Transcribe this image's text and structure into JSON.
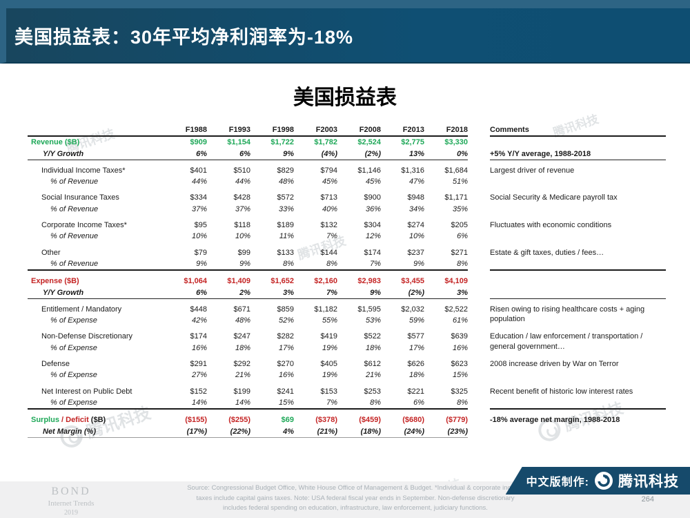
{
  "colors": {
    "green": "#1ea858",
    "red": "#c42424",
    "header_bg": "#0f4f73",
    "header_border": "#2d6484",
    "banner_bg": "#164a6b",
    "footer_bg": "#f0f0f1"
  },
  "header": {
    "title": "美国损益表：30年平均净利润率为-18%"
  },
  "main": {
    "table_title": "美国损益表"
  },
  "watermark": {
    "text": "腾讯科技"
  },
  "chart_data": {
    "type": "table",
    "title": "美国损益表",
    "columns": [
      "F1988",
      "F1993",
      "F1998",
      "F2003",
      "F2008",
      "F2013",
      "F2018"
    ],
    "comments_header": "Comments",
    "rows": [
      {
        "cls": "section green",
        "name": "row-revenue",
        "label": "Revenue ($B)",
        "values": [
          "$909",
          "$1,154",
          "$1,722",
          "$1,782",
          "$2,524",
          "$2,775",
          "$3,330"
        ],
        "b": "none",
        "cmt": {
          "text": "",
          "b": "none"
        }
      },
      {
        "cls": "growth",
        "name": "row-revenue-growth",
        "label": "Y/Y Growth",
        "values": [
          "6%",
          "6%",
          "9%",
          "(4%)",
          "(2%)",
          "13%",
          "0%"
        ],
        "b": "thin",
        "cmt": {
          "text": "+5% Y/Y average, 1988-2018",
          "bold": true,
          "b": "thin"
        }
      },
      {
        "cls": "item",
        "name": "row-individual-income-taxes",
        "gap": true,
        "label": "Individual Income Taxes*",
        "values": [
          "$401",
          "$510",
          "$829",
          "$794",
          "$1,146",
          "$1,316",
          "$1,684"
        ],
        "b": "none",
        "cmt": {
          "text": "Largest driver of revenue",
          "span": 2,
          "b": "none"
        }
      },
      {
        "cls": "pct",
        "name": "row-individual-pct",
        "label": "% of Revenue",
        "values": [
          "44%",
          "44%",
          "48%",
          "45%",
          "45%",
          "47%",
          "51%"
        ],
        "b": "none",
        "cskip": true
      },
      {
        "cls": "item",
        "name": "row-social-insurance-taxes",
        "gap": true,
        "label": "Social Insurance Taxes",
        "values": [
          "$334",
          "$428",
          "$572",
          "$713",
          "$900",
          "$948",
          "$1,171"
        ],
        "b": "none",
        "cmt": {
          "text": "Social Security & Medicare payroll tax",
          "span": 2,
          "b": "none"
        }
      },
      {
        "cls": "pct",
        "name": "row-social-pct",
        "label": "% of Revenue",
        "values": [
          "37%",
          "37%",
          "33%",
          "40%",
          "36%",
          "34%",
          "35%"
        ],
        "b": "none",
        "cskip": true
      },
      {
        "cls": "item",
        "name": "row-corporate-income-taxes",
        "gap": true,
        "label": "Corporate Income Taxes*",
        "values": [
          "$95",
          "$118",
          "$189",
          "$132",
          "$304",
          "$274",
          "$205"
        ],
        "b": "none",
        "cmt": {
          "text": "Fluctuates with economic conditions",
          "span": 2,
          "b": "none"
        }
      },
      {
        "cls": "pct",
        "name": "row-corporate-pct",
        "label": "% of Revenue",
        "values": [
          "10%",
          "10%",
          "11%",
          "7%",
          "12%",
          "10%",
          "6%"
        ],
        "b": "none",
        "cskip": true
      },
      {
        "cls": "item",
        "name": "row-other",
        "gap": true,
        "label": "Other",
        "values": [
          "$79",
          "$99",
          "$133",
          "$144",
          "$174",
          "$237",
          "$271"
        ],
        "b": "none",
        "cmt": {
          "text": "Estate & gift taxes, duties / fees…",
          "span": 2,
          "b": "thick"
        }
      },
      {
        "cls": "pct",
        "name": "row-other-pct",
        "label": "% of Revenue",
        "values": [
          "9%",
          "9%",
          "8%",
          "8%",
          "7%",
          "9%",
          "8%"
        ],
        "b": "thick",
        "cskip": true
      },
      {
        "cls": "section red",
        "name": "row-expense",
        "gap": true,
        "label": "Expense ($B)",
        "values": [
          "$1,064",
          "$1,409",
          "$1,652",
          "$2,160",
          "$2,983",
          "$3,455",
          "$4,109"
        ],
        "b": "none",
        "cmt": {
          "text": "",
          "b": "none"
        }
      },
      {
        "cls": "growth",
        "name": "row-expense-growth",
        "label": "Y/Y Growth",
        "values": [
          "6%",
          "2%",
          "3%",
          "7%",
          "9%",
          "(2%)",
          "3%"
        ],
        "b": "thin",
        "cmt": {
          "text": "",
          "b": "thin"
        }
      },
      {
        "cls": "item",
        "name": "row-entitlement",
        "gap": true,
        "label": "Entitlement / Mandatory",
        "values": [
          "$448",
          "$671",
          "$859",
          "$1,182",
          "$1,595",
          "$2,032",
          "$2,522"
        ],
        "b": "none",
        "cmt": {
          "text": "Risen owing to rising healthcare costs + aging population",
          "span": 2,
          "b": "none"
        }
      },
      {
        "cls": "pct",
        "name": "row-entitlement-pct",
        "label": "% of Expense",
        "values": [
          "42%",
          "48%",
          "52%",
          "55%",
          "53%",
          "59%",
          "61%"
        ],
        "b": "none",
        "cskip": true
      },
      {
        "cls": "item",
        "name": "row-non-defense",
        "gap": true,
        "label": "Non-Defense Discretionary",
        "values": [
          "$174",
          "$247",
          "$282",
          "$419",
          "$522",
          "$577",
          "$639"
        ],
        "b": "none",
        "cmt": {
          "text": "Education / law enforcement / transportation / general government…",
          "span": 2,
          "b": "none"
        }
      },
      {
        "cls": "pct",
        "name": "row-non-defense-pct",
        "label": "% of Expense",
        "values": [
          "16%",
          "18%",
          "17%",
          "19%",
          "18%",
          "17%",
          "16%"
        ],
        "b": "none",
        "cskip": true
      },
      {
        "cls": "item",
        "name": "row-defense",
        "gap": true,
        "label": "Defense",
        "values": [
          "$291",
          "$292",
          "$270",
          "$405",
          "$612",
          "$626",
          "$623"
        ],
        "b": "none",
        "cmt": {
          "text": "2008 increase driven by War on Terror",
          "span": 2,
          "b": "none"
        }
      },
      {
        "cls": "pct",
        "name": "row-defense-pct",
        "label": "% of Expense",
        "values": [
          "27%",
          "21%",
          "16%",
          "19%",
          "21%",
          "18%",
          "15%"
        ],
        "b": "none",
        "cskip": true
      },
      {
        "cls": "item",
        "name": "row-net-interest",
        "gap": true,
        "label": "Net Interest on Public Debt",
        "values": [
          "$152",
          "$199",
          "$241",
          "$153",
          "$253",
          "$221",
          "$325"
        ],
        "b": "none",
        "cmt": {
          "text": "Recent benefit of historic low interest rates",
          "span": 2,
          "b": "thick"
        }
      },
      {
        "cls": "pct",
        "name": "row-net-interest-pct",
        "label": "% of Expense",
        "values": [
          "14%",
          "14%",
          "15%",
          "7%",
          "8%",
          "6%",
          "8%"
        ],
        "b": "thick",
        "cskip": true
      },
      {
        "cls": "surplus",
        "name": "row-surplus-deficit",
        "gap": true,
        "label": [
          {
            "t": "Surplus",
            "c": "green"
          },
          {
            "t": " / ",
            "c": "red"
          },
          {
            "t": "Deficit",
            "c": "red"
          },
          {
            "t": " ($B)",
            "c": "black"
          }
        ],
        "values": [
          {
            "t": "($155)",
            "c": "red"
          },
          {
            "t": "($255)",
            "c": "red"
          },
          {
            "t": "$69",
            "c": "green"
          },
          {
            "t": "($378)",
            "c": "red"
          },
          {
            "t": "($459)",
            "c": "red"
          },
          {
            "t": "($680)",
            "c": "red"
          },
          {
            "t": "($779)",
            "c": "red"
          }
        ],
        "b": "none",
        "cmt": {
          "text": "-18% average net margin, 1988-2018",
          "bold": true,
          "span": 2,
          "b": "none"
        }
      },
      {
        "cls": "netmargin",
        "name": "row-net-margin",
        "label": "Net Margin (%)",
        "values": [
          "(17%)",
          "(22%)",
          "4%",
          "(21%)",
          "(18%)",
          "(24%)",
          "(23%)"
        ],
        "b": "gray",
        "cskip": true
      }
    ]
  },
  "footer": {
    "bond_line1": "BOND",
    "bond_line2": "Internet Trends",
    "bond_line3": "2019",
    "source": "Source:  Congressional Budget Office, White House Office of Management & Budget. *Individual & corporate income\ntaxes include capital gains taxes.  Note: USA federal fiscal year ends in September. Non-defense discretionary\nincludes federal spending on education, infrastructure, law enforcement, judiciary functions.",
    "banner_prefix": "中文版制作:",
    "banner_brand": "腾讯科技",
    "page_number": "264"
  }
}
